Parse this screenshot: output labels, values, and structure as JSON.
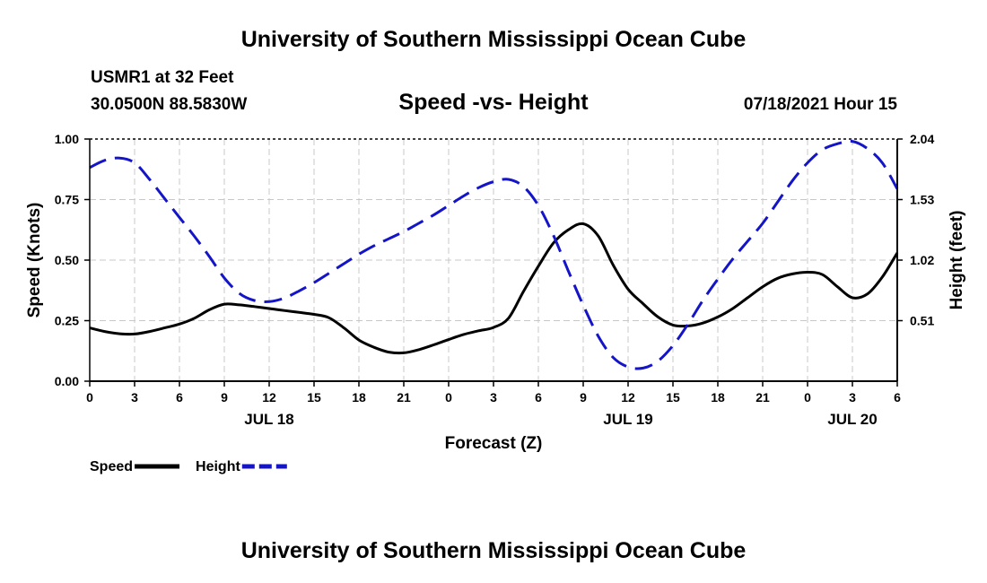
{
  "header": {
    "title": "University of Southern Mississippi Ocean Cube",
    "station": "USMR1 at 32 Feet",
    "coords": "30.0500N  88.5830W",
    "plot_title": "Speed -vs- Height",
    "datetime": "07/18/2021 Hour 15"
  },
  "footer": {
    "title": "University of Southern Mississippi Ocean Cube"
  },
  "colors": {
    "speed": "#000000",
    "height": "#1414c8",
    "grid": "#c8c8c8"
  },
  "chart_data": {
    "type": "line",
    "title": "Speed -vs- Height",
    "xlabel": "Forecast (Z)",
    "ylabel": "Speed (Knots)",
    "y2label": "Height (feet)",
    "x_unit": "hours since JUL 18 00Z",
    "xlim": [
      0,
      54
    ],
    "ylim": [
      0,
      1.0
    ],
    "y2lim": [
      0,
      2.04
    ],
    "x_ticks": [
      0,
      3,
      6,
      9,
      12,
      15,
      18,
      21,
      24,
      27,
      30,
      33,
      36,
      39,
      42,
      45,
      48,
      51,
      54
    ],
    "x_tick_labels": [
      "0",
      "3",
      "6",
      "9",
      "12",
      "15",
      "18",
      "21",
      "0",
      "3",
      "6",
      "9",
      "12",
      "15",
      "18",
      "21",
      "0",
      "3",
      "6"
    ],
    "y_ticks": [
      0.0,
      0.25,
      0.5,
      0.75,
      1.0
    ],
    "y_tick_labels": [
      "0.00",
      "0.25",
      "0.50",
      "0.75",
      "1.00"
    ],
    "y2_ticks": [
      0.51,
      1.02,
      1.53,
      2.04
    ],
    "y2_tick_labels": [
      "0.51",
      "1.02",
      "1.53",
      "2.04"
    ],
    "date_labels": [
      {
        "x": 12,
        "label": "JUL 18"
      },
      {
        "x": 36,
        "label": "JUL 19"
      },
      {
        "x": 51,
        "label": "JUL 20"
      }
    ],
    "grid": true,
    "legend_position": "bottom-left",
    "series": [
      {
        "name": "Speed",
        "axis": "left",
        "style": "solid",
        "x": [
          0,
          1,
          2,
          3,
          4,
          5,
          6,
          7,
          8,
          9,
          10,
          11,
          12,
          13,
          14,
          15,
          16,
          17,
          18,
          19,
          20,
          21,
          22,
          23,
          24,
          25,
          26,
          27,
          28,
          29,
          30,
          31,
          32,
          33,
          34,
          35,
          36,
          37,
          38,
          39,
          40,
          41,
          42,
          43,
          44,
          45,
          46,
          47,
          48,
          49,
          50,
          51,
          52,
          53,
          54
        ],
        "values": [
          0.22,
          0.205,
          0.196,
          0.195,
          0.205,
          0.22,
          0.236,
          0.26,
          0.295,
          0.318,
          0.315,
          0.308,
          0.3,
          0.292,
          0.284,
          0.276,
          0.262,
          0.22,
          0.17,
          0.14,
          0.12,
          0.117,
          0.13,
          0.15,
          0.172,
          0.193,
          0.208,
          0.222,
          0.26,
          0.37,
          0.475,
          0.57,
          0.625,
          0.65,
          0.6,
          0.48,
          0.38,
          0.32,
          0.265,
          0.232,
          0.228,
          0.24,
          0.265,
          0.3,
          0.345,
          0.39,
          0.425,
          0.443,
          0.45,
          0.44,
          0.39,
          0.345,
          0.36,
          0.43,
          0.53
        ]
      },
      {
        "name": "Height",
        "axis": "right",
        "style": "dashed",
        "x": [
          0,
          1,
          2,
          3,
          4,
          5,
          6,
          7,
          8,
          9,
          10,
          11,
          12,
          13,
          14,
          15,
          16,
          17,
          18,
          19,
          20,
          21,
          22,
          23,
          24,
          25,
          26,
          27,
          28,
          29,
          30,
          31,
          32,
          33,
          34,
          35,
          36,
          37,
          38,
          39,
          40,
          41,
          42,
          43,
          44,
          45,
          46,
          47,
          48,
          49,
          50,
          51,
          52,
          53,
          54
        ],
        "values": [
          1.8,
          1.86,
          1.88,
          1.84,
          1.7,
          1.54,
          1.38,
          1.22,
          1.05,
          0.87,
          0.74,
          0.68,
          0.67,
          0.7,
          0.76,
          0.83,
          0.91,
          0.99,
          1.07,
          1.14,
          1.2,
          1.26,
          1.33,
          1.4,
          1.48,
          1.56,
          1.63,
          1.68,
          1.7,
          1.64,
          1.48,
          1.23,
          0.93,
          0.64,
          0.38,
          0.2,
          0.12,
          0.11,
          0.17,
          0.3,
          0.48,
          0.68,
          0.86,
          1.03,
          1.18,
          1.33,
          1.51,
          1.69,
          1.84,
          1.95,
          2.0,
          2.02,
          1.96,
          1.84,
          1.62
        ]
      }
    ]
  }
}
